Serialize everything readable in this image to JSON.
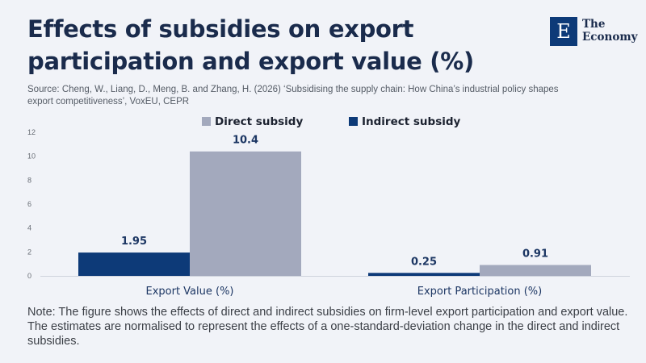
{
  "header": {
    "title": "Effects of subsidies on export participation and export value (%)",
    "source": "Source: Cheng, W., Liang, D., Meng, B. and Zhang, H. (2026) ‘Subsidising the supply chain: How China’s industrial policy shapes export competitiveness’, VoxEU, CEPR"
  },
  "logo": {
    "mark": "E",
    "line1": "The",
    "line2": "Economy"
  },
  "footer": {
    "note": "Note: The figure shows the effects of direct and indirect subsidies on firm-level export participation and export value. The estimates are normalised to represent the effects of a one-standard-deviation change in the direct and indirect subsidies."
  },
  "chart_data": {
    "type": "bar",
    "title": "Effects of subsidies on export participation and export value (%)",
    "categories": [
      "Export Value (%)",
      "Export Participation (%)"
    ],
    "series": [
      {
        "name": "Indirect subsidy",
        "color": "#0d3a78",
        "values": [
          1.95,
          0.25
        ],
        "labels": [
          "1.95",
          "0.25"
        ]
      },
      {
        "name": "Direct subsidy",
        "color": "#a3a9bd",
        "values": [
          10.4,
          0.91
        ],
        "labels": [
          "10.4",
          "0.91"
        ]
      }
    ],
    "legend_order": [
      "Direct subsidy",
      "Indirect subsidy"
    ],
    "legend_position": "top",
    "ylim": [
      0,
      12
    ],
    "yticks": [
      "0",
      "2",
      "4",
      "6",
      "8",
      "10",
      "12"
    ],
    "grid": false,
    "xlabel": "",
    "ylabel": ""
  }
}
